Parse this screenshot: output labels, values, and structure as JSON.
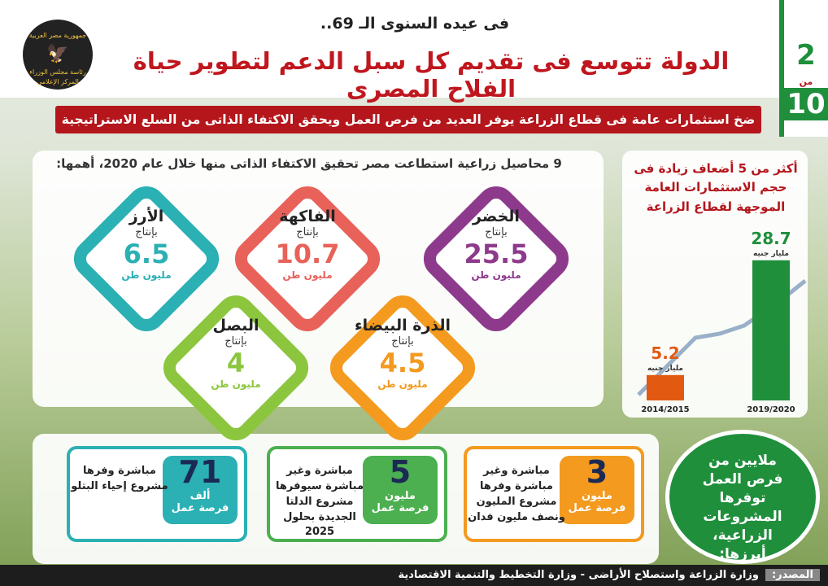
{
  "logo": {
    "line1": "جمهورية مصر العربية",
    "line2": "رئاسة مجلس الوزراء",
    "line3": "المركز الإعلامى"
  },
  "header": {
    "pre_title": "فى عيده السنوى الـ 69..",
    "title": "الدولة تتوسع فى تقديم كل سبل الدعم لتطوير حياة الفلاح المصرى",
    "subtitle": "ضخ استثمارات عامة فى قطاع الزراعة يوفر العديد من فرص العمل ويحقق الاكتفاء الذاتى من السلع الاستراتيجية"
  },
  "page_number": {
    "current": "2",
    "separator": "من",
    "total": "10"
  },
  "crops": {
    "intro": "9 محاصيل زراعية استطاعت مصر تحقيق الاكتفاء الذاتى منها خلال عام 2020، أهمها:",
    "items": [
      {
        "name": "الخضر",
        "prefix": "بإنتاج",
        "value": 25.5,
        "unit": "مليون طن"
      },
      {
        "name": "الفاكهة",
        "prefix": "بإنتاج",
        "value": 10.7,
        "unit": "مليون طن"
      },
      {
        "name": "الأرز",
        "prefix": "بإنتاج",
        "value": 6.5,
        "unit": "مليون طن"
      },
      {
        "name": "البصل",
        "prefix": "بإنتاج",
        "value": 4,
        "unit": "مليون طن"
      },
      {
        "name": "الذرة البيضاء",
        "prefix": "بإنتاج",
        "value": 4.5,
        "unit": "مليون طن"
      }
    ]
  },
  "investment": {
    "text": "أكثر من 5 أضعاف زيادة فى حجم الاستثمارات العامة الموجهة لقطاع الزراعة",
    "bars": [
      {
        "label": "2014/2015",
        "value": 5.2,
        "unit": "مليار جنيه"
      },
      {
        "label": "2019/2020",
        "value": 28.7,
        "unit": "مليار جنيه"
      }
    ]
  },
  "jobs": {
    "title": "ملايين من فرص العمل توفرها المشروعات الزراعية، أبرزها:",
    "items": [
      {
        "value": 3,
        "unit": "مليون",
        "label": "فرصة عمل",
        "description": "مباشرة وغير مباشرة وفرها مشروع المليون ونصف مليون فدان"
      },
      {
        "value": 5,
        "unit": "مليون",
        "label": "فرصة عمل",
        "description": "مباشرة وغير مباشرة سيوفرها مشروع الدلتا الجديدة بحلول 2025"
      },
      {
        "value": 71,
        "unit": "ألف",
        "label": "فرصة عمل",
        "description": "مباشرة وفرها مشروع إحياء البتلو"
      }
    ]
  },
  "source": {
    "label": "المصدر:",
    "text": "وزارة الزراعة واستصلاح الأراضى - وزارة التخطيط والتنمية الاقتصادية"
  }
}
